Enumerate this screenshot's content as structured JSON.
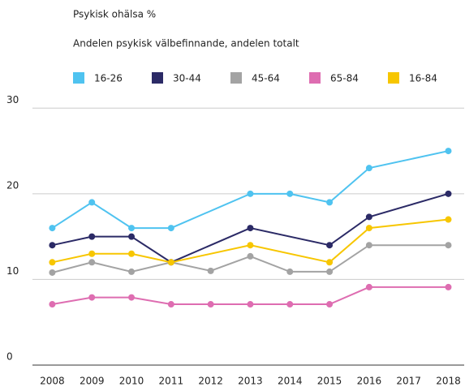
{
  "chart_data": {
    "type": "line",
    "title": "Psykisk ohälsa %",
    "subtitle": "Andelen psykisk välbefinnande, andelen totalt",
    "xlim": [
      2007.5,
      2018.4
    ],
    "xticks": [
      2008,
      2009,
      2010,
      2011,
      2012,
      2013,
      2014,
      2015,
      2016,
      2017,
      2018
    ],
    "ylim": [
      0,
      30.5
    ],
    "yticks": [
      0,
      10,
      20,
      30
    ],
    "grid": true,
    "legend": "top",
    "series": [
      {
        "name": "16-26",
        "color": "#4fc3f0",
        "x": [
          2008,
          2009,
          2010,
          2011,
          2013,
          2014,
          2015,
          2016,
          2018
        ],
        "values": [
          16,
          19,
          16,
          16,
          20,
          20,
          19,
          23,
          25
        ]
      },
      {
        "name": "30-44",
        "color": "#2b2a66",
        "x": [
          2008,
          2009,
          2010,
          2011,
          2013,
          2015,
          2016,
          2018
        ],
        "values": [
          14,
          15,
          15,
          12,
          16,
          14,
          17.3,
          20
        ]
      },
      {
        "name": "45-64",
        "color": "#a3a3a3",
        "x": [
          2008,
          2009,
          2010,
          2011,
          2012,
          2013,
          2014,
          2015,
          2016,
          2018
        ],
        "values": [
          10.8,
          12,
          10.9,
          12,
          11,
          12.7,
          10.9,
          10.9,
          14,
          14
        ]
      },
      {
        "name": "65-84",
        "color": "#de6db1",
        "x": [
          2008,
          2009,
          2010,
          2011,
          2012,
          2013,
          2014,
          2015,
          2016,
          2018
        ],
        "values": [
          7.1,
          7.9,
          7.9,
          7.1,
          7.1,
          7.1,
          7.1,
          7.1,
          9.1,
          9.1
        ]
      },
      {
        "name": "16-84",
        "color": "#f7c600",
        "x": [
          2008,
          2009,
          2010,
          2011,
          2013,
          2015,
          2016,
          2018
        ],
        "values": [
          12,
          13,
          13,
          12,
          14,
          12,
          16,
          17
        ]
      }
    ]
  }
}
